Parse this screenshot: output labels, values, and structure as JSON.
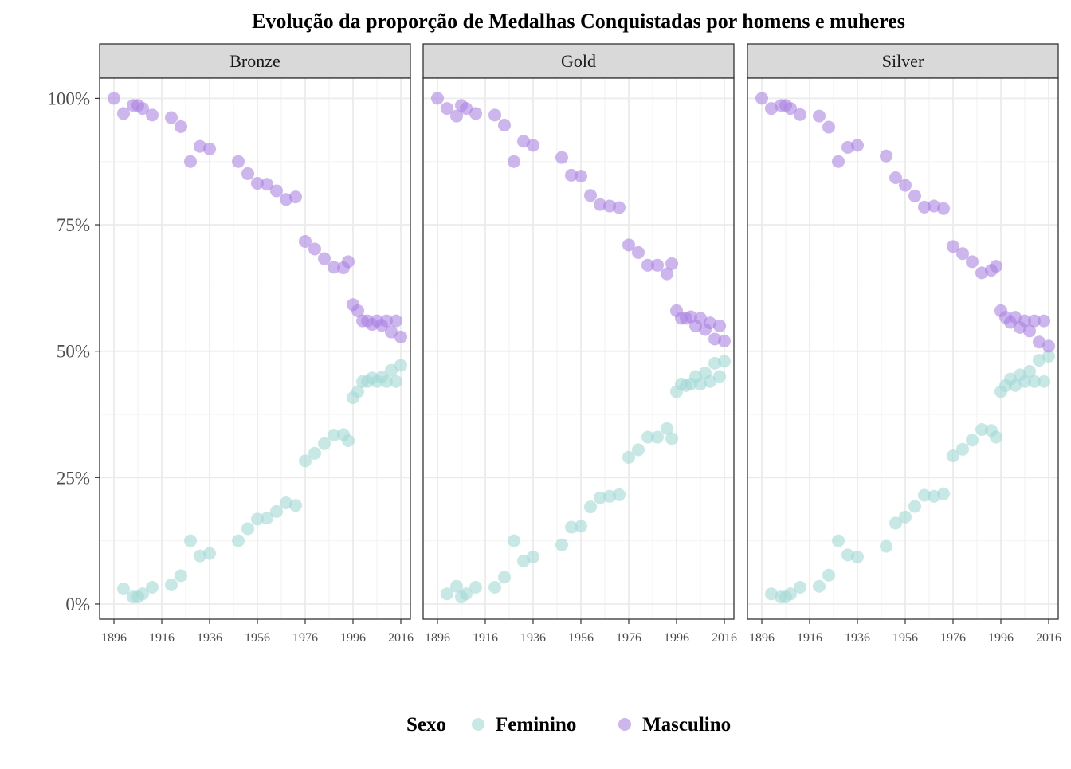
{
  "chart_data": {
    "type": "scatter",
    "title": "Evolução da proporção de Medalhas Conquistadas por homens e muheres",
    "xlabel": "",
    "ylabel": "",
    "xlim": [
      1890,
      2020
    ],
    "ylim": [
      -0.03,
      1.04
    ],
    "x_ticks": [
      1896,
      1916,
      1936,
      1956,
      1976,
      1996,
      2016
    ],
    "y_ticks": [
      0,
      0.25,
      0.5,
      0.75,
      1.0
    ],
    "y_tick_labels": [
      "0%",
      "25%",
      "50%",
      "75%",
      "100%"
    ],
    "grid": true,
    "legend": {
      "title": "Sexo",
      "position": "bottom",
      "entries": [
        {
          "name": "Feminino",
          "color": "#a3d9d6"
        },
        {
          "name": "Masculino",
          "color": "#ab83e3"
        }
      ]
    },
    "panels": [
      {
        "label": "Bronze",
        "series": [
          {
            "name": "Feminino",
            "x": [
              1900,
              1904,
              1906,
              1908,
              1912,
              1920,
              1924,
              1928,
              1932,
              1936,
              1948,
              1952,
              1956,
              1960,
              1964,
              1968,
              1972,
              1976,
              1980,
              1984,
              1988,
              1992,
              1994,
              1996,
              1998,
              2000,
              2002,
              2004,
              2006,
              2008,
              2010,
              2012,
              2014,
              2016
            ],
            "y": [
              0.03,
              0.014,
              0.014,
              0.02,
              0.033,
              0.038,
              0.056,
              0.125,
              0.095,
              0.1,
              0.125,
              0.149,
              0.168,
              0.17,
              0.183,
              0.2,
              0.195,
              0.283,
              0.298,
              0.317,
              0.334,
              0.335,
              0.323,
              0.408,
              0.42,
              0.44,
              0.44,
              0.447,
              0.44,
              0.449,
              0.44,
              0.462,
              0.44,
              0.472
            ]
          },
          {
            "name": "Masculino",
            "x": [
              1896,
              1900,
              1904,
              1906,
              1908,
              1912,
              1920,
              1924,
              1928,
              1932,
              1936,
              1948,
              1952,
              1956,
              1960,
              1964,
              1968,
              1972,
              1976,
              1980,
              1984,
              1988,
              1992,
              1994,
              1996,
              1998,
              2000,
              2002,
              2004,
              2006,
              2008,
              2010,
              2012,
              2014,
              2016
            ],
            "y": [
              1.0,
              0.97,
              0.986,
              0.986,
              0.98,
              0.967,
              0.962,
              0.944,
              0.875,
              0.905,
              0.9,
              0.875,
              0.851,
              0.832,
              0.83,
              0.817,
              0.8,
              0.805,
              0.717,
              0.702,
              0.683,
              0.666,
              0.665,
              0.677,
              0.592,
              0.58,
              0.56,
              0.56,
              0.553,
              0.56,
              0.551,
              0.56,
              0.538,
              0.56,
              0.528
            ]
          }
        ]
      },
      {
        "label": "Gold",
        "series": [
          {
            "name": "Feminino",
            "x": [
              1900,
              1904,
              1906,
              1908,
              1912,
              1920,
              1924,
              1928,
              1932,
              1936,
              1948,
              1952,
              1956,
              1960,
              1964,
              1968,
              1972,
              1976,
              1980,
              1984,
              1988,
              1992,
              1994,
              1996,
              1998,
              2000,
              2002,
              2004,
              2006,
              2008,
              2010,
              2012,
              2014,
              2016
            ],
            "y": [
              0.02,
              0.035,
              0.014,
              0.02,
              0.033,
              0.033,
              0.053,
              0.125,
              0.085,
              0.093,
              0.117,
              0.152,
              0.154,
              0.192,
              0.21,
              0.213,
              0.216,
              0.29,
              0.305,
              0.33,
              0.33,
              0.347,
              0.327,
              0.42,
              0.435,
              0.432,
              0.435,
              0.45,
              0.435,
              0.457,
              0.44,
              0.476,
              0.45,
              0.48
            ]
          },
          {
            "name": "Masculino",
            "x": [
              1896,
              1900,
              1904,
              1906,
              1908,
              1912,
              1920,
              1924,
              1928,
              1932,
              1936,
              1948,
              1952,
              1956,
              1960,
              1964,
              1968,
              1972,
              1976,
              1980,
              1984,
              1988,
              1992,
              1994,
              1996,
              1998,
              2000,
              2002,
              2004,
              2006,
              2008,
              2010,
              2012,
              2014,
              2016
            ],
            "y": [
              1.0,
              0.98,
              0.965,
              0.986,
              0.98,
              0.97,
              0.967,
              0.947,
              0.875,
              0.915,
              0.907,
              0.883,
              0.848,
              0.846,
              0.808,
              0.79,
              0.787,
              0.784,
              0.71,
              0.695,
              0.67,
              0.67,
              0.653,
              0.673,
              0.58,
              0.565,
              0.565,
              0.568,
              0.55,
              0.565,
              0.543,
              0.556,
              0.524,
              0.55,
              0.52
            ]
          }
        ]
      },
      {
        "label": "Silver",
        "series": [
          {
            "name": "Feminino",
            "x": [
              1900,
              1904,
              1906,
              1908,
              1912,
              1920,
              1924,
              1928,
              1932,
              1936,
              1948,
              1952,
              1956,
              1960,
              1964,
              1968,
              1972,
              1976,
              1980,
              1984,
              1988,
              1992,
              1994,
              1996,
              1998,
              2000,
              2002,
              2004,
              2006,
              2008,
              2010,
              2012,
              2014,
              2016
            ],
            "y": [
              0.02,
              0.014,
              0.014,
              0.02,
              0.033,
              0.035,
              0.057,
              0.125,
              0.097,
              0.093,
              0.114,
              0.16,
              0.172,
              0.193,
              0.215,
              0.213,
              0.218,
              0.293,
              0.306,
              0.324,
              0.345,
              0.343,
              0.33,
              0.42,
              0.432,
              0.445,
              0.432,
              0.453,
              0.44,
              0.46,
              0.44,
              0.482,
              0.44,
              0.49
            ]
          },
          {
            "name": "Masculino",
            "x": [
              1896,
              1900,
              1904,
              1906,
              1908,
              1912,
              1920,
              1924,
              1928,
              1932,
              1936,
              1948,
              1952,
              1956,
              1960,
              1964,
              1968,
              1972,
              1976,
              1980,
              1984,
              1988,
              1992,
              1994,
              1996,
              1998,
              2000,
              2002,
              2004,
              2006,
              2008,
              2010,
              2012,
              2014,
              2016
            ],
            "y": [
              1.0,
              0.98,
              0.986,
              0.986,
              0.98,
              0.968,
              0.965,
              0.943,
              0.875,
              0.903,
              0.907,
              0.886,
              0.843,
              0.828,
              0.807,
              0.785,
              0.787,
              0.782,
              0.707,
              0.693,
              0.677,
              0.655,
              0.66,
              0.668,
              0.58,
              0.567,
              0.557,
              0.567,
              0.547,
              0.56,
              0.54,
              0.56,
              0.518,
              0.56,
              0.51
            ]
          }
        ]
      }
    ]
  }
}
